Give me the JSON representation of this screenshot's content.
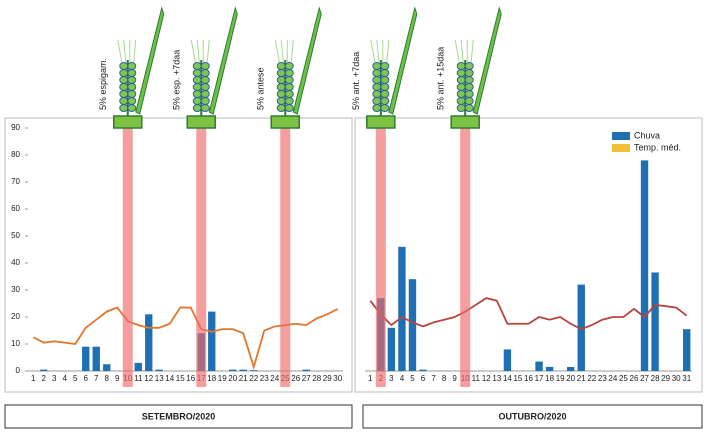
{
  "chart_data": [
    {
      "type": "bar",
      "categories": [
        1,
        2,
        3,
        4,
        5,
        6,
        7,
        8,
        9,
        10,
        11,
        12,
        13,
        14,
        15,
        16,
        17,
        18,
        19,
        20,
        21,
        22,
        23,
        24,
        25,
        26,
        27,
        28,
        29,
        30
      ],
      "series": [
        {
          "color": "#1f6fb5",
          "values": [
            0,
            0.5,
            0,
            0,
            0,
            9,
            9,
            2.5,
            0,
            0,
            3,
            21,
            0.5,
            0,
            0,
            0,
            14,
            22,
            0,
            0.5,
            0.5,
            0.3,
            0,
            0,
            0,
            0,
            0.5,
            0,
            0,
            0
          ]
        },
        {
          "type": "line",
          "color": "#e2762a",
          "values": [
            12.5,
            10.5,
            11,
            10.5,
            10,
            16,
            19,
            22,
            23.5,
            18.5,
            17,
            16,
            16,
            17.5,
            23.5,
            23.5,
            15.5,
            14.5,
            15.5,
            15.5,
            14,
            1.5,
            15,
            16.5,
            17,
            17.5,
            17,
            19.5,
            21,
            23
          ]
        }
      ],
      "annotations": [
        {
          "x": 10,
          "label": "5% espigam."
        },
        {
          "x": 17,
          "label": "5% esp. +7daa"
        },
        {
          "x": 25,
          "label": "5% antese"
        }
      ],
      "ylim": [
        0,
        90
      ],
      "yticks": [
        0,
        10,
        20,
        30,
        40,
        50,
        60,
        70,
        80,
        90
      ],
      "xlabel": "SETEMBRO/2020"
    },
    {
      "type": "bar",
      "categories": [
        1,
        2,
        3,
        4,
        5,
        6,
        7,
        8,
        9,
        10,
        11,
        12,
        13,
        14,
        15,
        16,
        17,
        18,
        19,
        20,
        21,
        22,
        23,
        24,
        25,
        26,
        27,
        28,
        29,
        30,
        31
      ],
      "series": [
        {
          "name": "Chuva",
          "color": "#1f6fb5",
          "values": [
            0,
            27,
            16,
            46,
            34,
            0.5,
            0,
            0,
            0,
            0,
            0,
            0,
            0,
            8,
            0,
            0,
            3.5,
            1.5,
            0,
            1.5,
            32,
            0,
            0,
            0,
            0,
            0,
            78,
            36.5,
            0,
            0,
            15.5
          ]
        },
        {
          "name": "Temp. méd.",
          "type": "line",
          "color": "#f2c037",
          "line_color": "#b5453d",
          "values": [
            26,
            21,
            17,
            20,
            18,
            16.5,
            18,
            19,
            20,
            22,
            24.5,
            27,
            26,
            17.5,
            17.5,
            17.5,
            20,
            19,
            20,
            17.5,
            15.5,
            17,
            19,
            20,
            20,
            23,
            20,
            24.5,
            24,
            23.5,
            20.5
          ]
        }
      ],
      "annotations": [
        {
          "x": 2,
          "label": "5% ant. +7daa"
        },
        {
          "x": 10,
          "label": "5% ant. +15daa"
        }
      ],
      "ylim": [
        0,
        90
      ],
      "legend": "upper right",
      "xlabel": "OUTUBRO/2020"
    }
  ]
}
